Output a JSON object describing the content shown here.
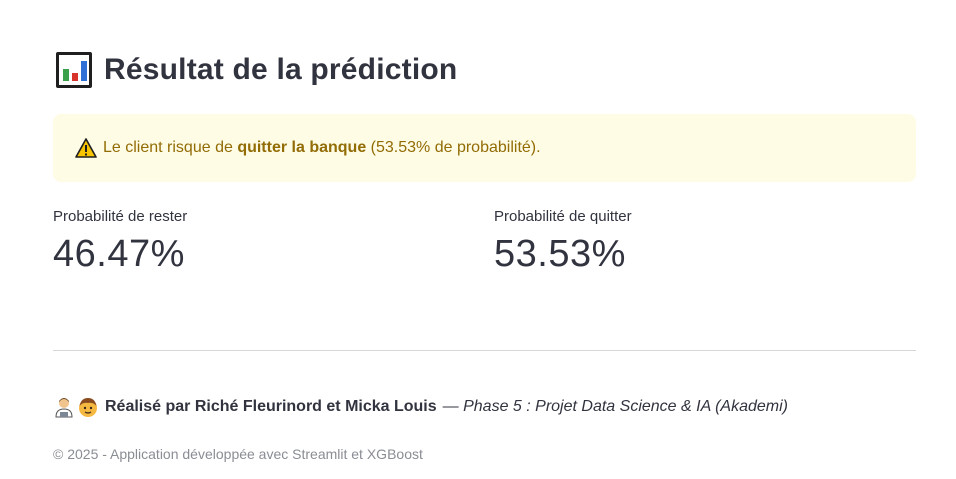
{
  "header": {
    "title": "Résultat de la prédiction",
    "icon": "bar-chart-icon"
  },
  "alert": {
    "icon": "warning-icon",
    "text_before": "Le client risque de",
    "text_bold": "quitter la banque",
    "text_after": "(53.53% de probabilité).",
    "color_background": "#fffce6",
    "color_text": "#926c05"
  },
  "metrics": [
    {
      "label": "Probabilité de rester",
      "value": "46.47%"
    },
    {
      "label": "Probabilité de quitter",
      "value": "53.53%"
    }
  ],
  "credits": {
    "icons": [
      "man-technologist-icon",
      "boy-face-icon"
    ],
    "authors": "Réalisé par Riché Fleurinord et Micka Louis",
    "separator": "—",
    "project": "Phase 5 : Projet Data Science & IA (Akademi)"
  },
  "footer": {
    "text": "© 2025 - Application développée avec Streamlit et XGBoost"
  }
}
